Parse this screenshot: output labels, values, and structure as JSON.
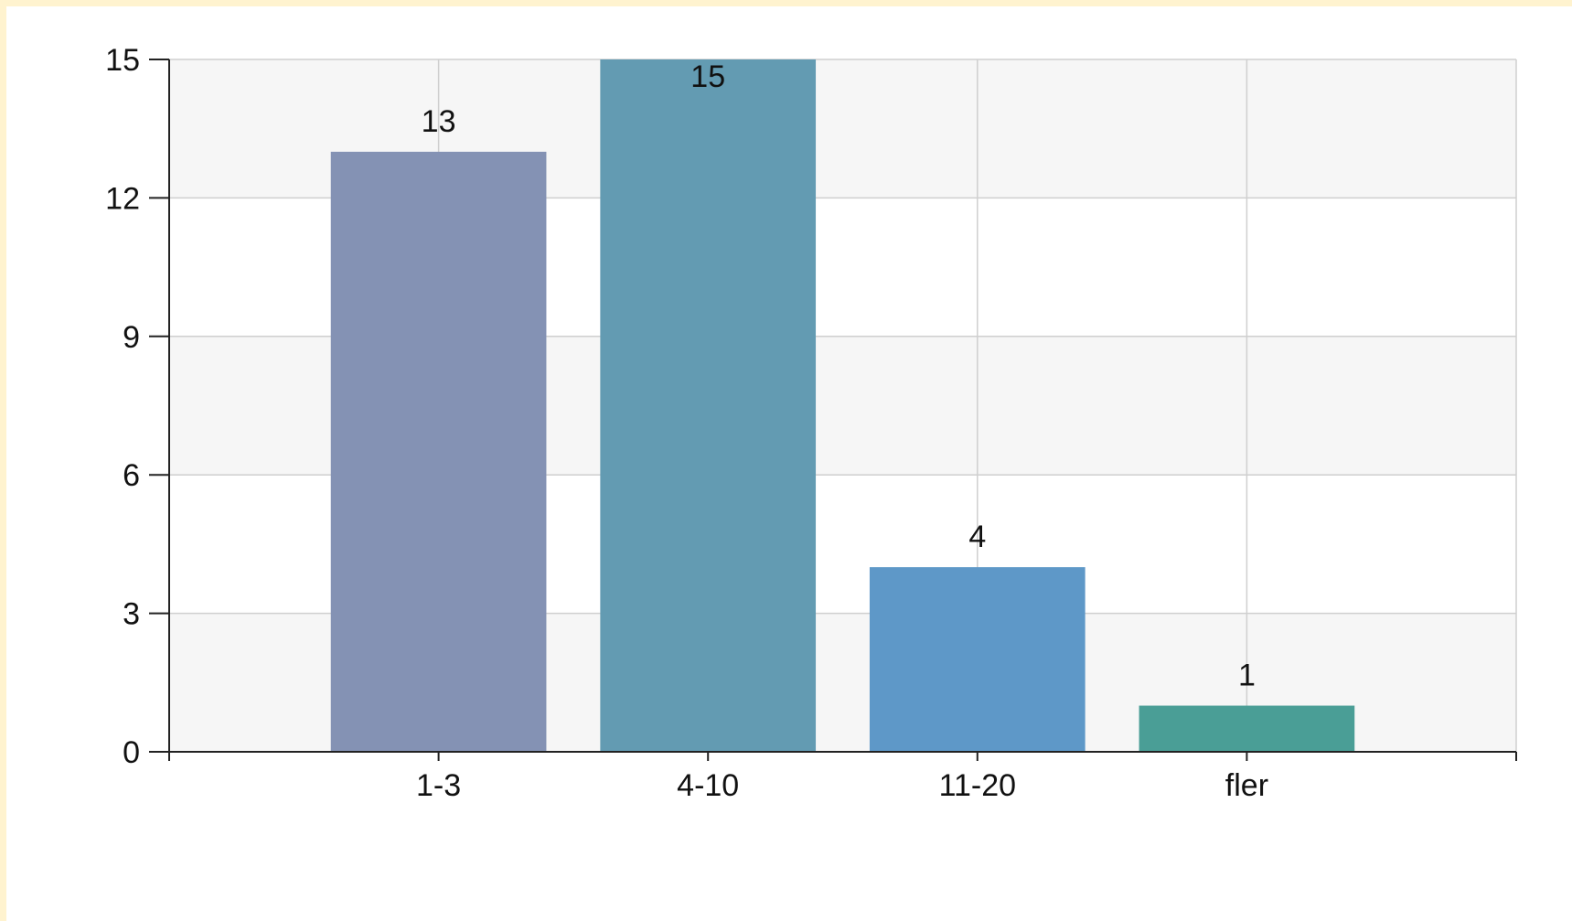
{
  "chart_data": {
    "type": "bar",
    "title": "",
    "xlabel": "",
    "ylabel": "",
    "categories": [
      "1-3",
      "4-10",
      "11-20",
      "fler"
    ],
    "values": [
      13,
      15,
      4,
      1
    ],
    "data_labels": [
      "13",
      "15",
      "4",
      "1"
    ],
    "ylim": [
      0,
      15
    ],
    "yticks": [
      0,
      3,
      6,
      9,
      12,
      15
    ],
    "ytick_labels": [
      "0",
      "3",
      "6",
      "9",
      "12",
      "15"
    ],
    "grid": true,
    "legend": "none",
    "colors": {
      "bars": [
        "#8492b4",
        "#639bb2",
        "#5e98c8",
        "#4a9e96"
      ],
      "band": "#f6f6f6",
      "gridline": "#cfcfcf",
      "axis": "#222222",
      "page_border": "#fff3cf"
    }
  }
}
